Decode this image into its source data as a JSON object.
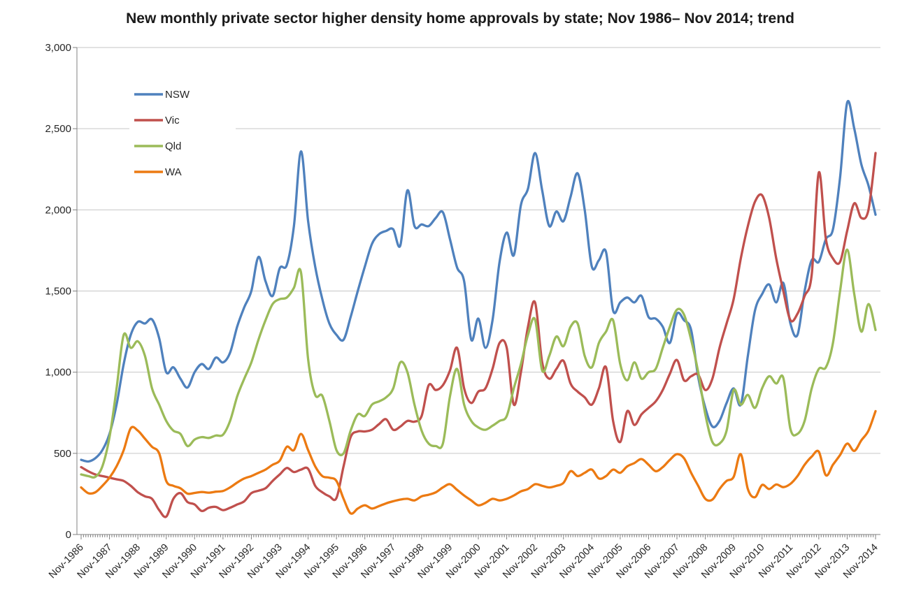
{
  "title": "New monthly private sector higher density home approvals by state; Nov 1986– Nov 2014; trend",
  "chart_data": {
    "type": "line",
    "sampling": "quarterly estimates read from trend lines (Nov-1986 to Nov-2014, every 3 months)",
    "x_tick_labels": [
      "Nov-1986",
      "Nov-1987",
      "Nov-1988",
      "Nov-1989",
      "Nov-1990",
      "Nov-1991",
      "Nov-1992",
      "Nov-1993",
      "Nov-1994",
      "Nov-1995",
      "Nov-1996",
      "Nov-1997",
      "Nov-1998",
      "Nov-1999",
      "Nov-2000",
      "Nov-2001",
      "Nov-2002",
      "Nov-2003",
      "Nov-2004",
      "Nov-2005",
      "Nov-2006",
      "Nov-2007",
      "Nov-2008",
      "Nov-2009",
      "Nov-2010",
      "Nov-2011",
      "Nov-2012",
      "Nov-2013",
      "Nov-2014"
    ],
    "points_per_year": 4,
    "ylim": [
      0,
      3000
    ],
    "y_tick_interval": 500,
    "y_tick_labels": [
      "0",
      "500",
      "1,000",
      "1,500",
      "2,000",
      "2,500",
      "3,000"
    ],
    "grid": "horizontal gridlines on",
    "legend_position": "inside top-left",
    "axis_color": "#808080",
    "gridline_color": "#c6c6c6",
    "series": [
      {
        "name": "NSW",
        "color": "#4F81BD",
        "values": [
          460,
          450,
          470,
          520,
          620,
          800,
          1050,
          1230,
          1310,
          1300,
          1325,
          1210,
          1000,
          1030,
          960,
          905,
          1000,
          1050,
          1020,
          1090,
          1060,
          1120,
          1280,
          1400,
          1500,
          1710,
          1560,
          1470,
          1640,
          1660,
          1900,
          2360,
          1930,
          1650,
          1450,
          1300,
          1230,
          1200,
          1340,
          1500,
          1650,
          1790,
          1850,
          1870,
          1880,
          1780,
          2120,
          1900,
          1910,
          1900,
          1950,
          1985,
          1820,
          1645,
          1560,
          1200,
          1330,
          1150,
          1320,
          1680,
          1860,
          1720,
          2030,
          2130,
          2350,
          2120,
          1900,
          1990,
          1930,
          2080,
          2225,
          2000,
          1650,
          1690,
          1740,
          1380,
          1430,
          1460,
          1430,
          1470,
          1340,
          1330,
          1280,
          1180,
          1360,
          1320,
          1260,
          970,
          780,
          665,
          700,
          810,
          900,
          800,
          1100,
          1380,
          1480,
          1540,
          1430,
          1550,
          1300,
          1230,
          1500,
          1690,
          1680,
          1820,
          1880,
          2200,
          2660,
          2500,
          2280,
          2150,
          1970
        ]
      },
      {
        "name": "Vic",
        "color": "#C0504D",
        "values": [
          415,
          390,
          370,
          360,
          350,
          340,
          330,
          300,
          260,
          235,
          220,
          150,
          110,
          220,
          255,
          200,
          185,
          145,
          165,
          170,
          150,
          165,
          185,
          205,
          255,
          270,
          285,
          330,
          370,
          410,
          385,
          400,
          405,
          300,
          260,
          235,
          225,
          420,
          600,
          635,
          635,
          645,
          680,
          710,
          645,
          665,
          700,
          695,
          730,
          920,
          890,
          920,
          1010,
          1150,
          900,
          810,
          880,
          900,
          1020,
          1180,
          1150,
          800,
          1000,
          1280,
          1430,
          1060,
          960,
          1020,
          1070,
          930,
          880,
          845,
          800,
          900,
          1030,
          700,
          570,
          760,
          675,
          740,
          780,
          820,
          890,
          990,
          1075,
          950,
          975,
          985,
          890,
          960,
          1150,
          1300,
          1450,
          1700,
          1900,
          2050,
          2090,
          1950,
          1700,
          1500,
          1320,
          1360,
          1470,
          1600,
          2230,
          1820,
          1700,
          1680,
          1870,
          2040,
          1950,
          2000,
          2350
        ]
      },
      {
        "name": "Qld",
        "color": "#9BBB59",
        "values": [
          370,
          360,
          355,
          420,
          600,
          900,
          1230,
          1150,
          1190,
          1100,
          900,
          800,
          700,
          640,
          620,
          545,
          585,
          600,
          595,
          610,
          615,
          700,
          850,
          960,
          1060,
          1200,
          1320,
          1420,
          1450,
          1460,
          1520,
          1615,
          1080,
          860,
          855,
          700,
          520,
          500,
          640,
          740,
          730,
          800,
          820,
          845,
          900,
          1060,
          1000,
          800,
          640,
          560,
          545,
          560,
          850,
          1020,
          800,
          700,
          660,
          645,
          670,
          700,
          730,
          900,
          1050,
          1230,
          1325,
          1010,
          1100,
          1220,
          1160,
          1280,
          1300,
          1100,
          1030,
          1180,
          1250,
          1320,
          1050,
          950,
          1060,
          960,
          1000,
          1020,
          1150,
          1280,
          1385,
          1355,
          1200,
          1000,
          740,
          570,
          560,
          640,
          890,
          800,
          860,
          780,
          900,
          975,
          930,
          965,
          650,
          620,
          700,
          900,
          1020,
          1030,
          1180,
          1500,
          1755,
          1480,
          1250,
          1420,
          1260
        ]
      },
      {
        "name": "WA",
        "color": "#EC7A12",
        "values": [
          290,
          255,
          260,
          300,
          350,
          420,
          520,
          655,
          640,
          590,
          540,
          500,
          330,
          300,
          285,
          252,
          256,
          262,
          258,
          264,
          268,
          290,
          320,
          345,
          360,
          380,
          400,
          430,
          455,
          540,
          520,
          620,
          520,
          420,
          360,
          350,
          330,
          220,
          130,
          160,
          180,
          160,
          175,
          192,
          205,
          215,
          220,
          210,
          235,
          245,
          260,
          290,
          310,
          275,
          240,
          210,
          180,
          195,
          220,
          210,
          220,
          240,
          266,
          280,
          310,
          300,
          290,
          300,
          318,
          390,
          360,
          380,
          400,
          345,
          360,
          400,
          380,
          420,
          440,
          465,
          430,
          390,
          415,
          460,
          495,
          470,
          380,
          300,
          220,
          215,
          280,
          330,
          355,
          495,
          280,
          230,
          305,
          280,
          308,
          292,
          312,
          360,
          430,
          480,
          510,
          365,
          430,
          490,
          560,
          515,
          580,
          640,
          760
        ]
      }
    ]
  }
}
